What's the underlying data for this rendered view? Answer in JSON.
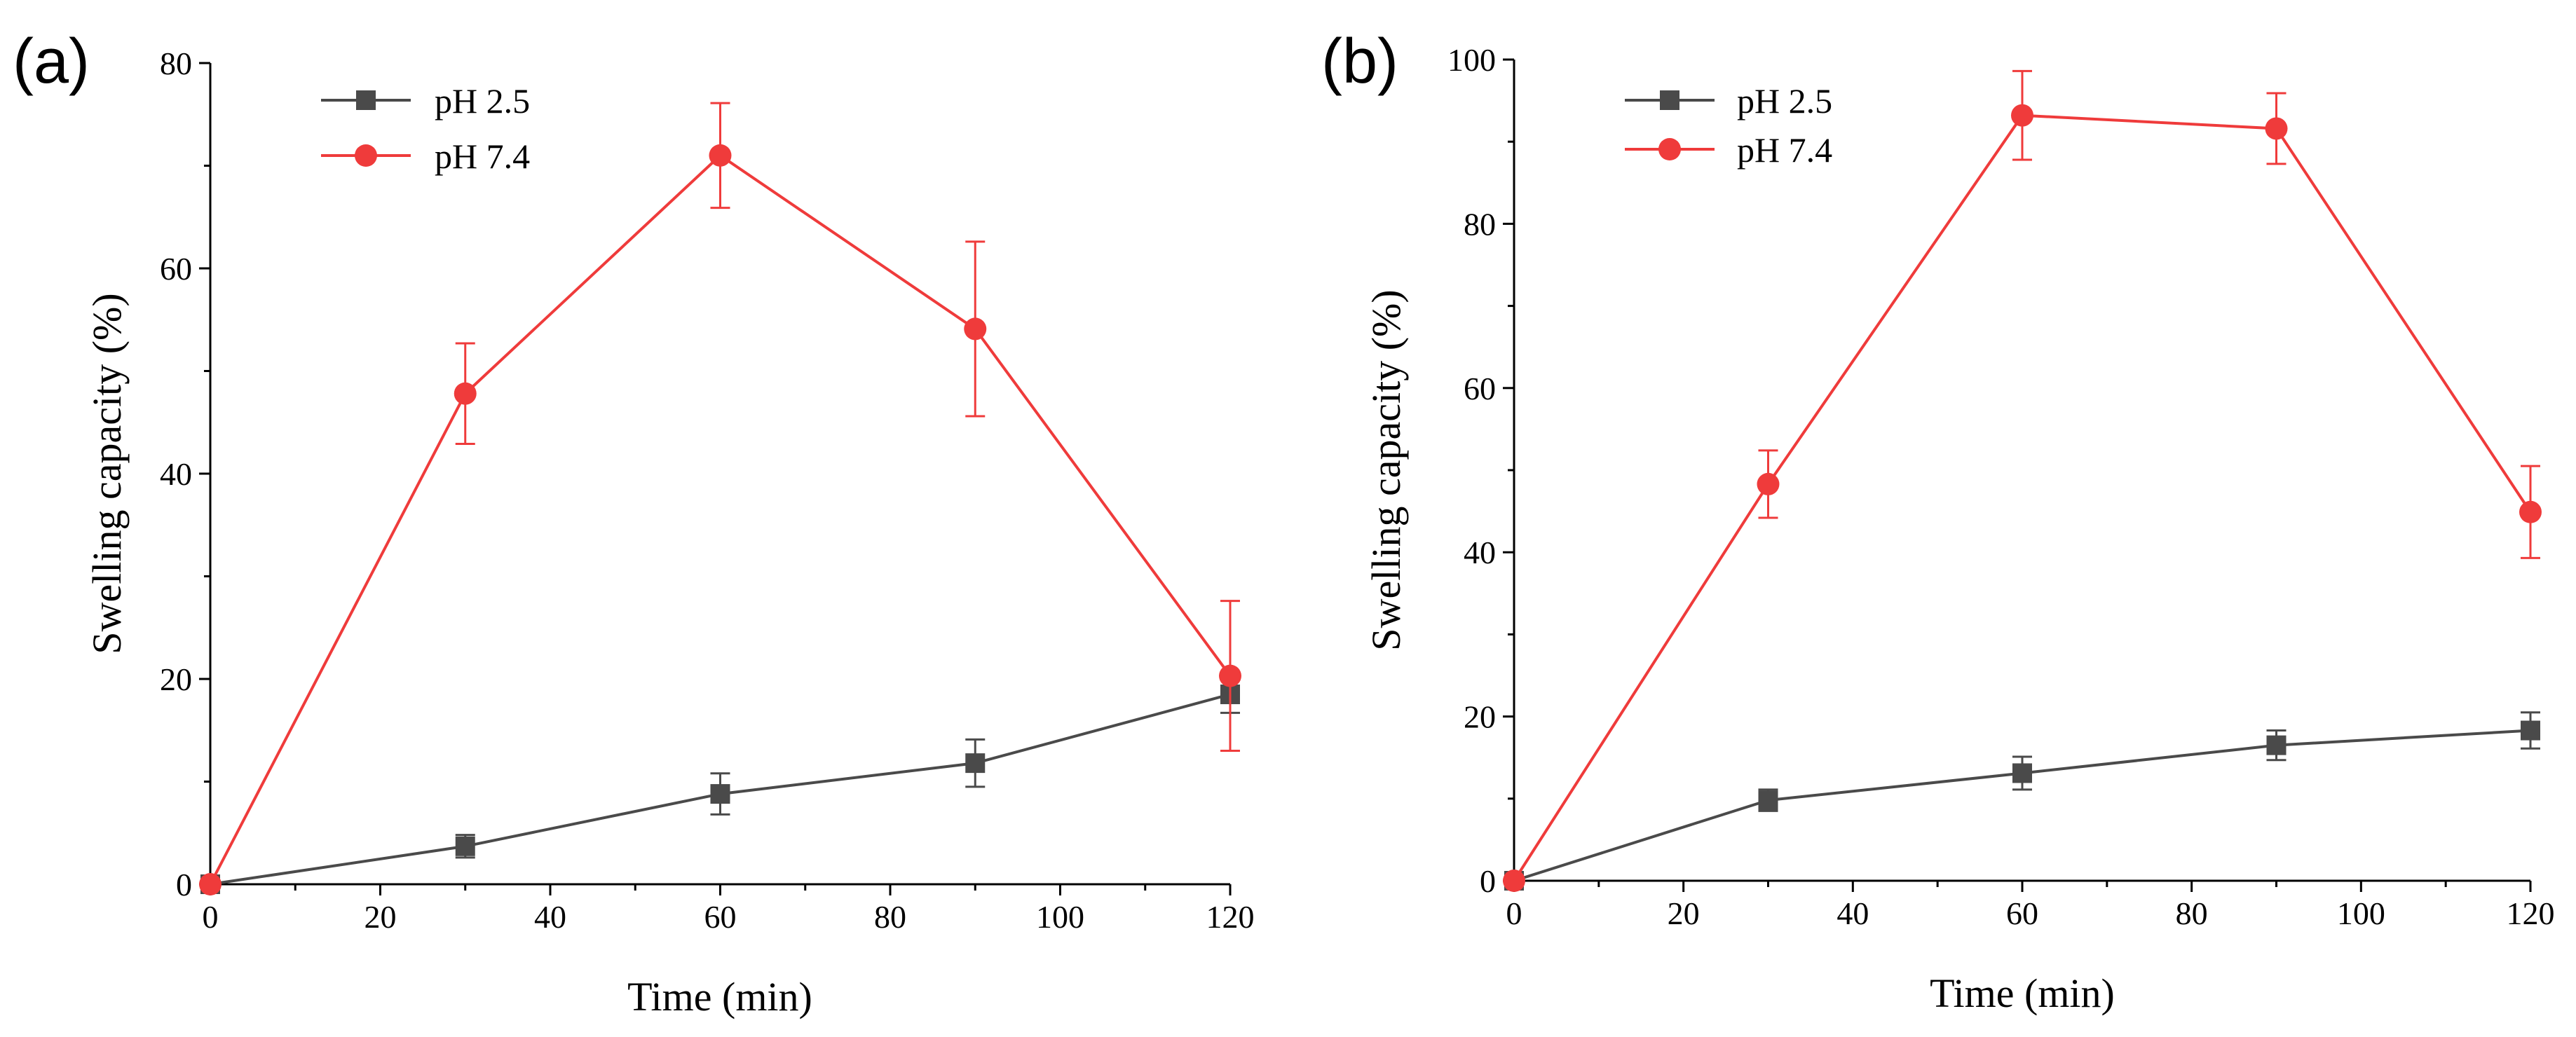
{
  "chart_data": [
    {
      "type": "line",
      "panel_label": "(a)",
      "title": "",
      "xlabel": "Time (min)",
      "ylabel": "Swelling capacity (%)",
      "xlim": [
        0,
        120
      ],
      "ylim": [
        0,
        80
      ],
      "x_ticks": [
        "0",
        "20",
        "40",
        "60",
        "80",
        "100",
        "120"
      ],
      "y_ticks": [
        "0",
        "20",
        "40",
        "60",
        "80"
      ],
      "legend_position": "top-left",
      "x": [
        0,
        30,
        60,
        90,
        120
      ],
      "series": [
        {
          "name": "pH 2.5",
          "marker": "square",
          "color": "#4a4a4a",
          "values": [
            0,
            3.7,
            8.8,
            11.8,
            18.5
          ],
          "errors": [
            0,
            1.1,
            2.0,
            2.3,
            1.8
          ]
        },
        {
          "name": "pH 7.4",
          "marker": "circle",
          "color": "#ef3b3b",
          "values": [
            0,
            47.8,
            71.0,
            54.1,
            20.3
          ],
          "errors": [
            0,
            4.9,
            5.1,
            8.5,
            7.3
          ]
        }
      ]
    },
    {
      "type": "line",
      "panel_label": "(b)",
      "title": "",
      "xlabel": "Time (min)",
      "ylabel": "Swelling capacity (%)",
      "xlim": [
        0,
        120
      ],
      "ylim": [
        0,
        100
      ],
      "x_ticks": [
        "0",
        "20",
        "40",
        "60",
        "80",
        "100",
        "120"
      ],
      "y_ticks": [
        "0",
        "20",
        "40",
        "60",
        "80",
        "100"
      ],
      "legend_position": "top-left",
      "x": [
        0,
        30,
        60,
        90,
        120
      ],
      "series": [
        {
          "name": "pH 2.5",
          "marker": "square",
          "color": "#4a4a4a",
          "values": [
            0,
            9.8,
            13.1,
            16.5,
            18.3
          ],
          "errors": [
            0,
            1.3,
            2.0,
            1.8,
            2.2
          ]
        },
        {
          "name": "pH 7.4",
          "marker": "circle",
          "color": "#ef3b3b",
          "values": [
            0,
            48.3,
            93.2,
            91.6,
            44.9
          ],
          "errors": [
            0,
            4.1,
            5.4,
            4.3,
            5.6
          ]
        }
      ]
    }
  ]
}
